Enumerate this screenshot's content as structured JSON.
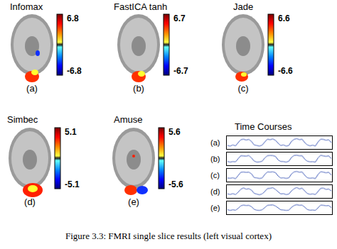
{
  "figure": {
    "caption": "Figure 3.3: FMRI single slice results (left visual cortex)",
    "panels": [
      {
        "label": "(a)",
        "title": "Infomax",
        "colorbar": {
          "range": [
            -6.8,
            6.8
          ],
          "ticks": [
            -6.8,
            6.8
          ]
        }
      },
      {
        "label": "(b)",
        "title": "FastICA tanh",
        "colorbar": {
          "range": [
            -6.7,
            6.7
          ],
          "ticks": [
            -6.7,
            6.7
          ]
        }
      },
      {
        "label": "(c)",
        "title": "Jade",
        "colorbar": {
          "range": [
            -6.6,
            6.6
          ],
          "ticks": [
            -6.6,
            6.6
          ]
        }
      },
      {
        "label": "(d)",
        "title": "Simbec",
        "colorbar": {
          "range": [
            -5.1,
            5.1
          ],
          "ticks": [
            -5.1,
            5.1
          ]
        }
      },
      {
        "label": "(e)",
        "title": "Amuse",
        "colorbar": {
          "range": [
            -5.6,
            5.6
          ],
          "ticks": [
            -5.6,
            5.6
          ]
        }
      }
    ]
  },
  "chart_data": {
    "type": "line",
    "title": "Time Courses",
    "tick_labels": false,
    "grid": false,
    "x": [
      0,
      1,
      2,
      3,
      4,
      5,
      6,
      7,
      8,
      9,
      10,
      11,
      12,
      13,
      14,
      15,
      16,
      17,
      18,
      19,
      20,
      21,
      22,
      23,
      24,
      25,
      26,
      27,
      28,
      29,
      30,
      31,
      32,
      33,
      34,
      35,
      36,
      37,
      38,
      39
    ],
    "xlim": [
      0,
      39
    ],
    "ylim": [
      0,
      1
    ],
    "series": [
      {
        "name": "(a)",
        "color": "#3a55b5",
        "values": [
          0.25,
          0.2,
          0.3,
          0.22,
          0.5,
          0.75,
          0.8,
          0.72,
          0.78,
          0.6,
          0.3,
          0.25,
          0.2,
          0.28,
          0.55,
          0.8,
          0.75,
          0.82,
          0.7,
          0.45,
          0.25,
          0.3,
          0.2,
          0.25,
          0.6,
          0.78,
          0.85,
          0.75,
          0.8,
          0.5,
          0.3,
          0.22,
          0.28,
          0.2,
          0.55,
          0.8,
          0.78,
          0.7,
          0.75,
          0.5
        ]
      },
      {
        "name": "(b)",
        "color": "#3a55b5",
        "values": [
          0.28,
          0.22,
          0.27,
          0.25,
          0.52,
          0.78,
          0.76,
          0.74,
          0.8,
          0.58,
          0.32,
          0.22,
          0.24,
          0.3,
          0.58,
          0.78,
          0.8,
          0.79,
          0.72,
          0.42,
          0.28,
          0.27,
          0.22,
          0.3,
          0.62,
          0.8,
          0.82,
          0.77,
          0.78,
          0.48,
          0.3,
          0.25,
          0.26,
          0.22,
          0.58,
          0.82,
          0.76,
          0.72,
          0.77,
          0.52
        ]
      },
      {
        "name": "(c)",
        "color": "#3a55b5",
        "values": [
          0.26,
          0.24,
          0.28,
          0.2,
          0.48,
          0.76,
          0.78,
          0.75,
          0.77,
          0.62,
          0.3,
          0.27,
          0.22,
          0.26,
          0.56,
          0.79,
          0.77,
          0.8,
          0.73,
          0.44,
          0.26,
          0.28,
          0.23,
          0.27,
          0.6,
          0.79,
          0.83,
          0.76,
          0.79,
          0.5,
          0.28,
          0.24,
          0.27,
          0.21,
          0.56,
          0.81,
          0.77,
          0.71,
          0.76,
          0.51
        ]
      },
      {
        "name": "(d)",
        "color": "#3a55b5",
        "values": [
          0.3,
          0.25,
          0.32,
          0.24,
          0.45,
          0.7,
          0.82,
          0.7,
          0.75,
          0.62,
          0.35,
          0.28,
          0.22,
          0.3,
          0.5,
          0.76,
          0.78,
          0.84,
          0.68,
          0.48,
          0.3,
          0.32,
          0.24,
          0.28,
          0.55,
          0.74,
          0.86,
          0.72,
          0.8,
          0.55,
          0.33,
          0.26,
          0.3,
          0.24,
          0.5,
          0.78,
          0.8,
          0.68,
          0.72,
          0.55
        ]
      },
      {
        "name": "(e)",
        "color": "#3a55b5",
        "values": [
          0.35,
          0.28,
          0.34,
          0.3,
          0.46,
          0.68,
          0.74,
          0.7,
          0.72,
          0.6,
          0.38,
          0.3,
          0.28,
          0.34,
          0.52,
          0.72,
          0.74,
          0.76,
          0.66,
          0.5,
          0.34,
          0.32,
          0.28,
          0.3,
          0.54,
          0.7,
          0.78,
          0.72,
          0.74,
          0.56,
          0.36,
          0.3,
          0.32,
          0.28,
          0.5,
          0.74,
          0.72,
          0.68,
          0.7,
          0.52
        ]
      }
    ]
  }
}
